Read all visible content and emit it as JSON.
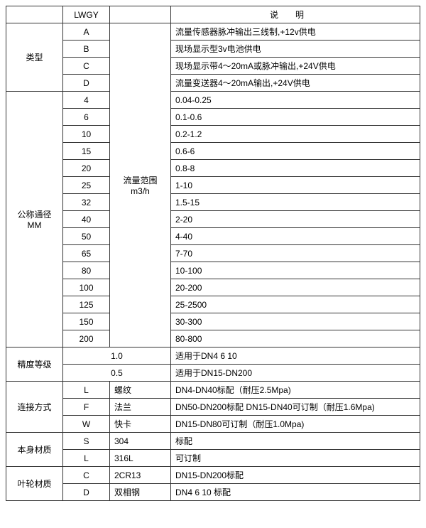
{
  "colors": {
    "border": "#333333",
    "text": "#000000",
    "background": "#ffffff"
  },
  "typography": {
    "font_family": "Microsoft YaHei, SimSun, Arial, sans-serif",
    "font_size": 12
  },
  "header": {
    "col2": "LWGY",
    "col4": "说明"
  },
  "sec_type": {
    "rowhead": "类型",
    "rows": [
      {
        "code": "A",
        "desc": "流量传感器脉冲输出三线制,+12v供电"
      },
      {
        "code": "B",
        "desc": "现场显示型3v电池供电"
      },
      {
        "code": "C",
        "desc": "现场显示带4～20mA或脉冲输出,+24V供电"
      },
      {
        "code": "D",
        "desc": "流量变送器4～20mA输出,+24V供电"
      }
    ]
  },
  "sec_dn": {
    "rowhead_line1": "公称通径",
    "rowhead_line2": "MM",
    "midhead_line1": "流量范围",
    "midhead_line2": "m3/h",
    "rows": [
      {
        "code": "4",
        "desc": "0.04-0.25"
      },
      {
        "code": "6",
        "desc": "0.1-0.6"
      },
      {
        "code": "10",
        "desc": "0.2-1.2"
      },
      {
        "code": "15",
        "desc": "0.6-6"
      },
      {
        "code": "20",
        "desc": "0.8-8"
      },
      {
        "code": "25",
        "desc": "1-10"
      },
      {
        "code": "32",
        "desc": "1.5-15"
      },
      {
        "code": "40",
        "desc": "2-20"
      },
      {
        "code": "50",
        "desc": "4-40"
      },
      {
        "code": "65",
        "desc": "7-70"
      },
      {
        "code": "80",
        "desc": "10-100"
      },
      {
        "code": "100",
        "desc": "20-200"
      },
      {
        "code": "125",
        "desc": "25-2500"
      },
      {
        "code": "150",
        "desc": "30-300"
      },
      {
        "code": "200",
        "desc": "80-800"
      }
    ]
  },
  "sec_accuracy": {
    "rowhead": "精度等级",
    "rows": [
      {
        "code": "1.0",
        "desc": "适用于DN4 6 10"
      },
      {
        "code": "0.5",
        "desc": "适用于DN15-DN200"
      }
    ]
  },
  "sec_connect": {
    "rowhead": "连接方式",
    "rows": [
      {
        "code": "L",
        "mid": "螺纹",
        "desc": "DN4-DN40标配（耐压2.5Mpa)"
      },
      {
        "code": "F",
        "mid": "法兰",
        "desc": "DN50-DN200标配 DN15-DN40可订制（耐压1.6Mpa)"
      },
      {
        "code": "W",
        "mid": "快卡",
        "desc": "DN15-DN80可订制（耐压1.0Mpa)"
      }
    ]
  },
  "sec_body": {
    "rowhead": "本身材质",
    "rows": [
      {
        "code": "S",
        "mid": "304",
        "desc": "标配"
      },
      {
        "code": "L",
        "mid": "316L",
        "desc": "可订制"
      }
    ]
  },
  "sec_impeller": {
    "rowhead": "叶轮材质",
    "rows": [
      {
        "code": "C",
        "mid": "2CR13",
        "desc": "DN15-DN200标配"
      },
      {
        "code": "D",
        "mid": "双相钢",
        "desc": "DN4 6 10 标配"
      }
    ]
  }
}
